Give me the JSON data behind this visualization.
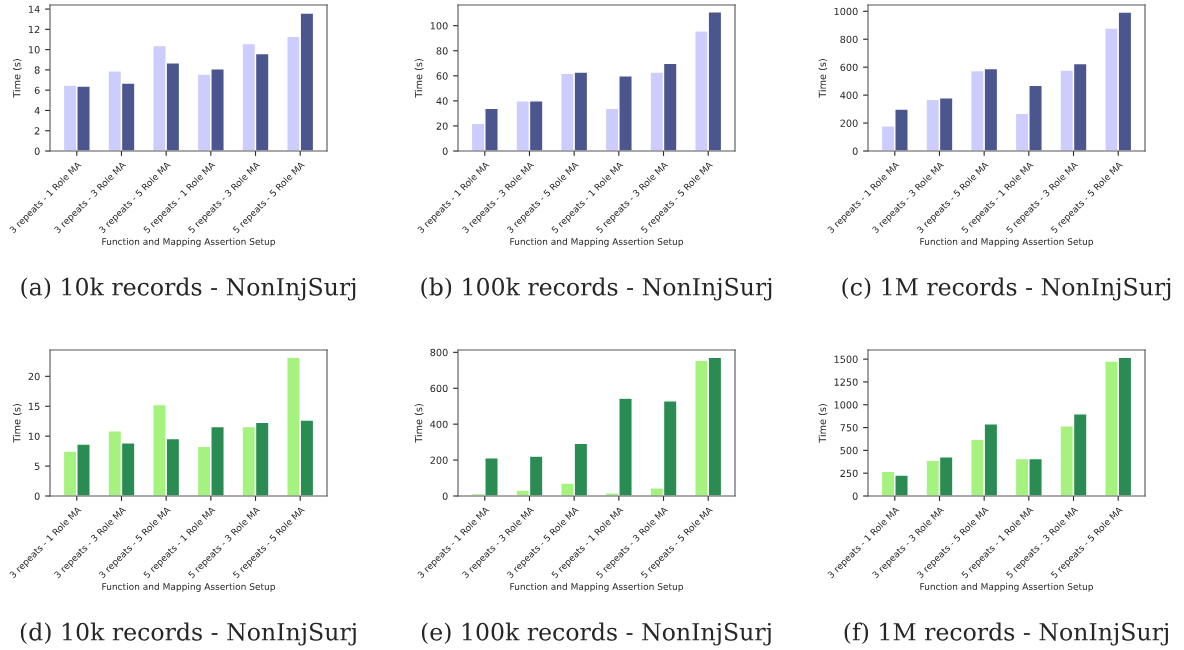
{
  "chart_data": [
    {
      "type": "bar",
      "categories": [
        "3 repeats - 1 Role MA",
        "3 repeats - 3 Role MA",
        "3 repeats - 5 Role MA",
        "5 repeats - 1 Role MA",
        "5 repeats - 3 Role MA",
        "5 repeats - 5 Role MA"
      ],
      "xlabel": "Function and Mapping Assertion Setup",
      "ylabel": "Time (s)",
      "ylim": [
        0,
        14.4
      ],
      "yticks": [
        0,
        2,
        4,
        6,
        8,
        10,
        12,
        14
      ],
      "grid": false,
      "annotations": [
        "(a) 10k records - NonInjSurj"
      ],
      "series": [
        {
          "color": "#ccccff",
          "values": [
            6.5,
            7.9,
            10.4,
            7.6,
            10.6,
            11.3
          ]
        },
        {
          "color": "#4b568f",
          "values": [
            6.4,
            6.7,
            8.7,
            8.1,
            9.6,
            13.6
          ]
        }
      ]
    },
    {
      "type": "bar",
      "categories": [
        "3 repeats - 1 Role MA",
        "3 repeats - 3 Role MA",
        "3 repeats - 5 Role MA",
        "5 repeats - 1 Role MA",
        "5 repeats - 3 Role MA",
        "5 repeats - 5 Role MA"
      ],
      "xlabel": "Function and Mapping Assertion Setup",
      "ylabel": "Time (s)",
      "ylim": [
        0,
        116.5
      ],
      "yticks": [
        0,
        20,
        40,
        60,
        80,
        100
      ],
      "grid": false,
      "annotations": [
        "(b) 100k records - NonInjSurj"
      ],
      "series": [
        {
          "color": "#ccccff",
          "values": [
            22,
            40,
            62,
            34,
            63,
            96
          ]
        },
        {
          "color": "#4b568f",
          "values": [
            34,
            40,
            63,
            60,
            70,
            111
          ]
        }
      ]
    },
    {
      "type": "bar",
      "categories": [
        "3 repeats - 1 Role MA",
        "3 repeats - 3 Role MA",
        "3 repeats - 5 Role MA",
        "5 repeats - 1 Role MA",
        "5 repeats - 3 Role MA",
        "5 repeats - 5 Role MA"
      ],
      "xlabel": "Function and Mapping Assertion Setup",
      "ylabel": "Time (s)",
      "ylim": [
        0,
        1045
      ],
      "yticks": [
        0,
        200,
        400,
        600,
        800,
        1000
      ],
      "grid": false,
      "annotations": [
        "(c) 1M records - NonInjSurj"
      ],
      "series": [
        {
          "color": "#ccccff",
          "values": [
            180,
            370,
            575,
            270,
            580,
            880
          ]
        },
        {
          "color": "#4b568f",
          "values": [
            300,
            380,
            590,
            470,
            625,
            995
          ]
        }
      ]
    },
    {
      "type": "bar",
      "categories": [
        "3 repeats - 1 Role MA",
        "3 repeats - 3 Role MA",
        "3 repeats - 5 Role MA",
        "5 repeats - 1 Role MA",
        "5 repeats - 3 Role MA",
        "5 repeats - 5 Role MA"
      ],
      "xlabel": "Function and Mapping Assertion Setup",
      "ylabel": "Time (s)",
      "ylim": [
        0,
        24.4
      ],
      "yticks": [
        0,
        5,
        10,
        15,
        20
      ],
      "grid": false,
      "annotations": [
        "(d) 10k records - NonInjSurj"
      ],
      "series": [
        {
          "color": "#a6f27f",
          "values": [
            7.5,
            10.9,
            15.3,
            8.3,
            11.6,
            23.2
          ]
        },
        {
          "color": "#2a8c52",
          "values": [
            8.7,
            8.9,
            9.6,
            11.6,
            12.3,
            12.7
          ]
        }
      ]
    },
    {
      "type": "bar",
      "categories": [
        "3 repeats - 1 Role MA",
        "3 repeats - 3 Role MA",
        "3 repeats - 5 Role MA",
        "5 repeats - 1 Role MA",
        "5 repeats - 3 Role MA",
        "5 repeats - 5 Role MA"
      ],
      "xlabel": "Function and Mapping Assertion Setup",
      "ylabel": "Time (s)",
      "ylim": [
        0,
        813
      ],
      "yticks": [
        0,
        200,
        400,
        600,
        800
      ],
      "grid": false,
      "annotations": [
        "(e) 100k records - NonInjSurj"
      ],
      "series": [
        {
          "color": "#a6f27f",
          "values": [
            14,
            33,
            72,
            18,
            45,
            755
          ]
        },
        {
          "color": "#2a8c52",
          "values": [
            212,
            222,
            293,
            545,
            530,
            773
          ]
        }
      ]
    },
    {
      "type": "bar",
      "categories": [
        "3 repeats - 1 Role MA",
        "3 repeats - 3 Role MA",
        "3 repeats - 5 Role MA",
        "5 repeats - 1 Role MA",
        "5 repeats - 3 Role MA",
        "5 repeats - 5 Role MA"
      ],
      "xlabel": "Function and Mapping Assertion Setup",
      "ylabel": "Time (s)",
      "ylim": [
        0,
        1600
      ],
      "yticks": [
        0,
        250,
        500,
        750,
        1000,
        1250,
        1500
      ],
      "grid": false,
      "annotations": [
        "(f) 1M records - NonInjSurj"
      ],
      "series": [
        {
          "color": "#a6f27f",
          "values": [
            270,
            390,
            620,
            410,
            770,
            1480
          ]
        },
        {
          "color": "#2a8c52",
          "values": [
            230,
            430,
            790,
            410,
            900,
            1520
          ]
        }
      ]
    }
  ]
}
